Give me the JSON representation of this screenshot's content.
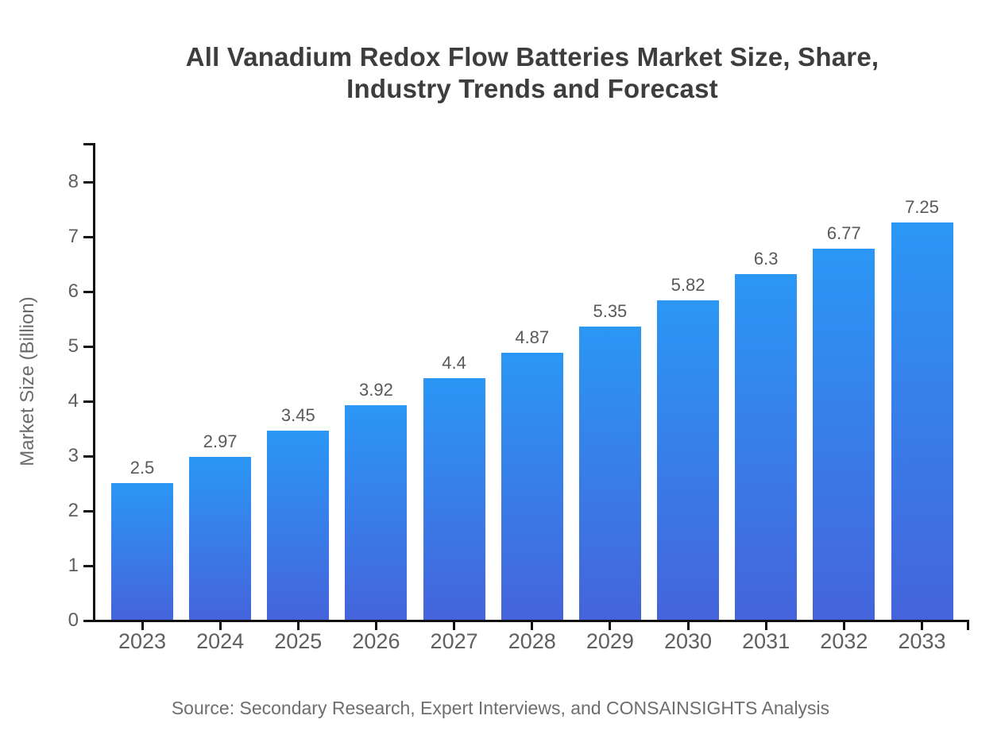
{
  "page": {
    "background_color": "#ffffff"
  },
  "chart_data": {
    "type": "bar",
    "title_lines": [
      "All Vanadium Redox Flow Batteries Market Size, Share,",
      "Industry Trends and Forecast"
    ],
    "categories": [
      "2023",
      "2024",
      "2025",
      "2026",
      "2027",
      "2028",
      "2029",
      "2030",
      "2031",
      "2032",
      "2033"
    ],
    "values": [
      2.5,
      2.97,
      3.45,
      3.92,
      4.4,
      4.87,
      5.35,
      5.82,
      6.3,
      6.77,
      7.25
    ],
    "value_labels": [
      "2.5",
      "2.97",
      "3.45",
      "3.92",
      "4.4",
      "4.87",
      "5.35",
      "5.82",
      "6.3",
      "6.77",
      "7.25"
    ],
    "xlabel": "",
    "ylabel": "Market Size (Billion)",
    "ylim": [
      0,
      8
    ],
    "y_ticks": [
      0,
      1,
      2,
      3,
      4,
      5,
      6,
      7,
      8
    ],
    "grid": false,
    "legend": "none",
    "source": "Source: Secondary Research, Expert Interviews, and CONSAINSIGHTS Analysis",
    "colors": {
      "bar_gradient_top": "#2B97F5",
      "bar_gradient_bottom": "#4564DB",
      "axis_line": "#111111",
      "title_text": "#3d3d3d",
      "tick_label_text": "#5f5f5f",
      "value_label_text": "#595959",
      "axis_title_text": "#6b6b6b",
      "source_text": "#6e6e6e"
    }
  }
}
